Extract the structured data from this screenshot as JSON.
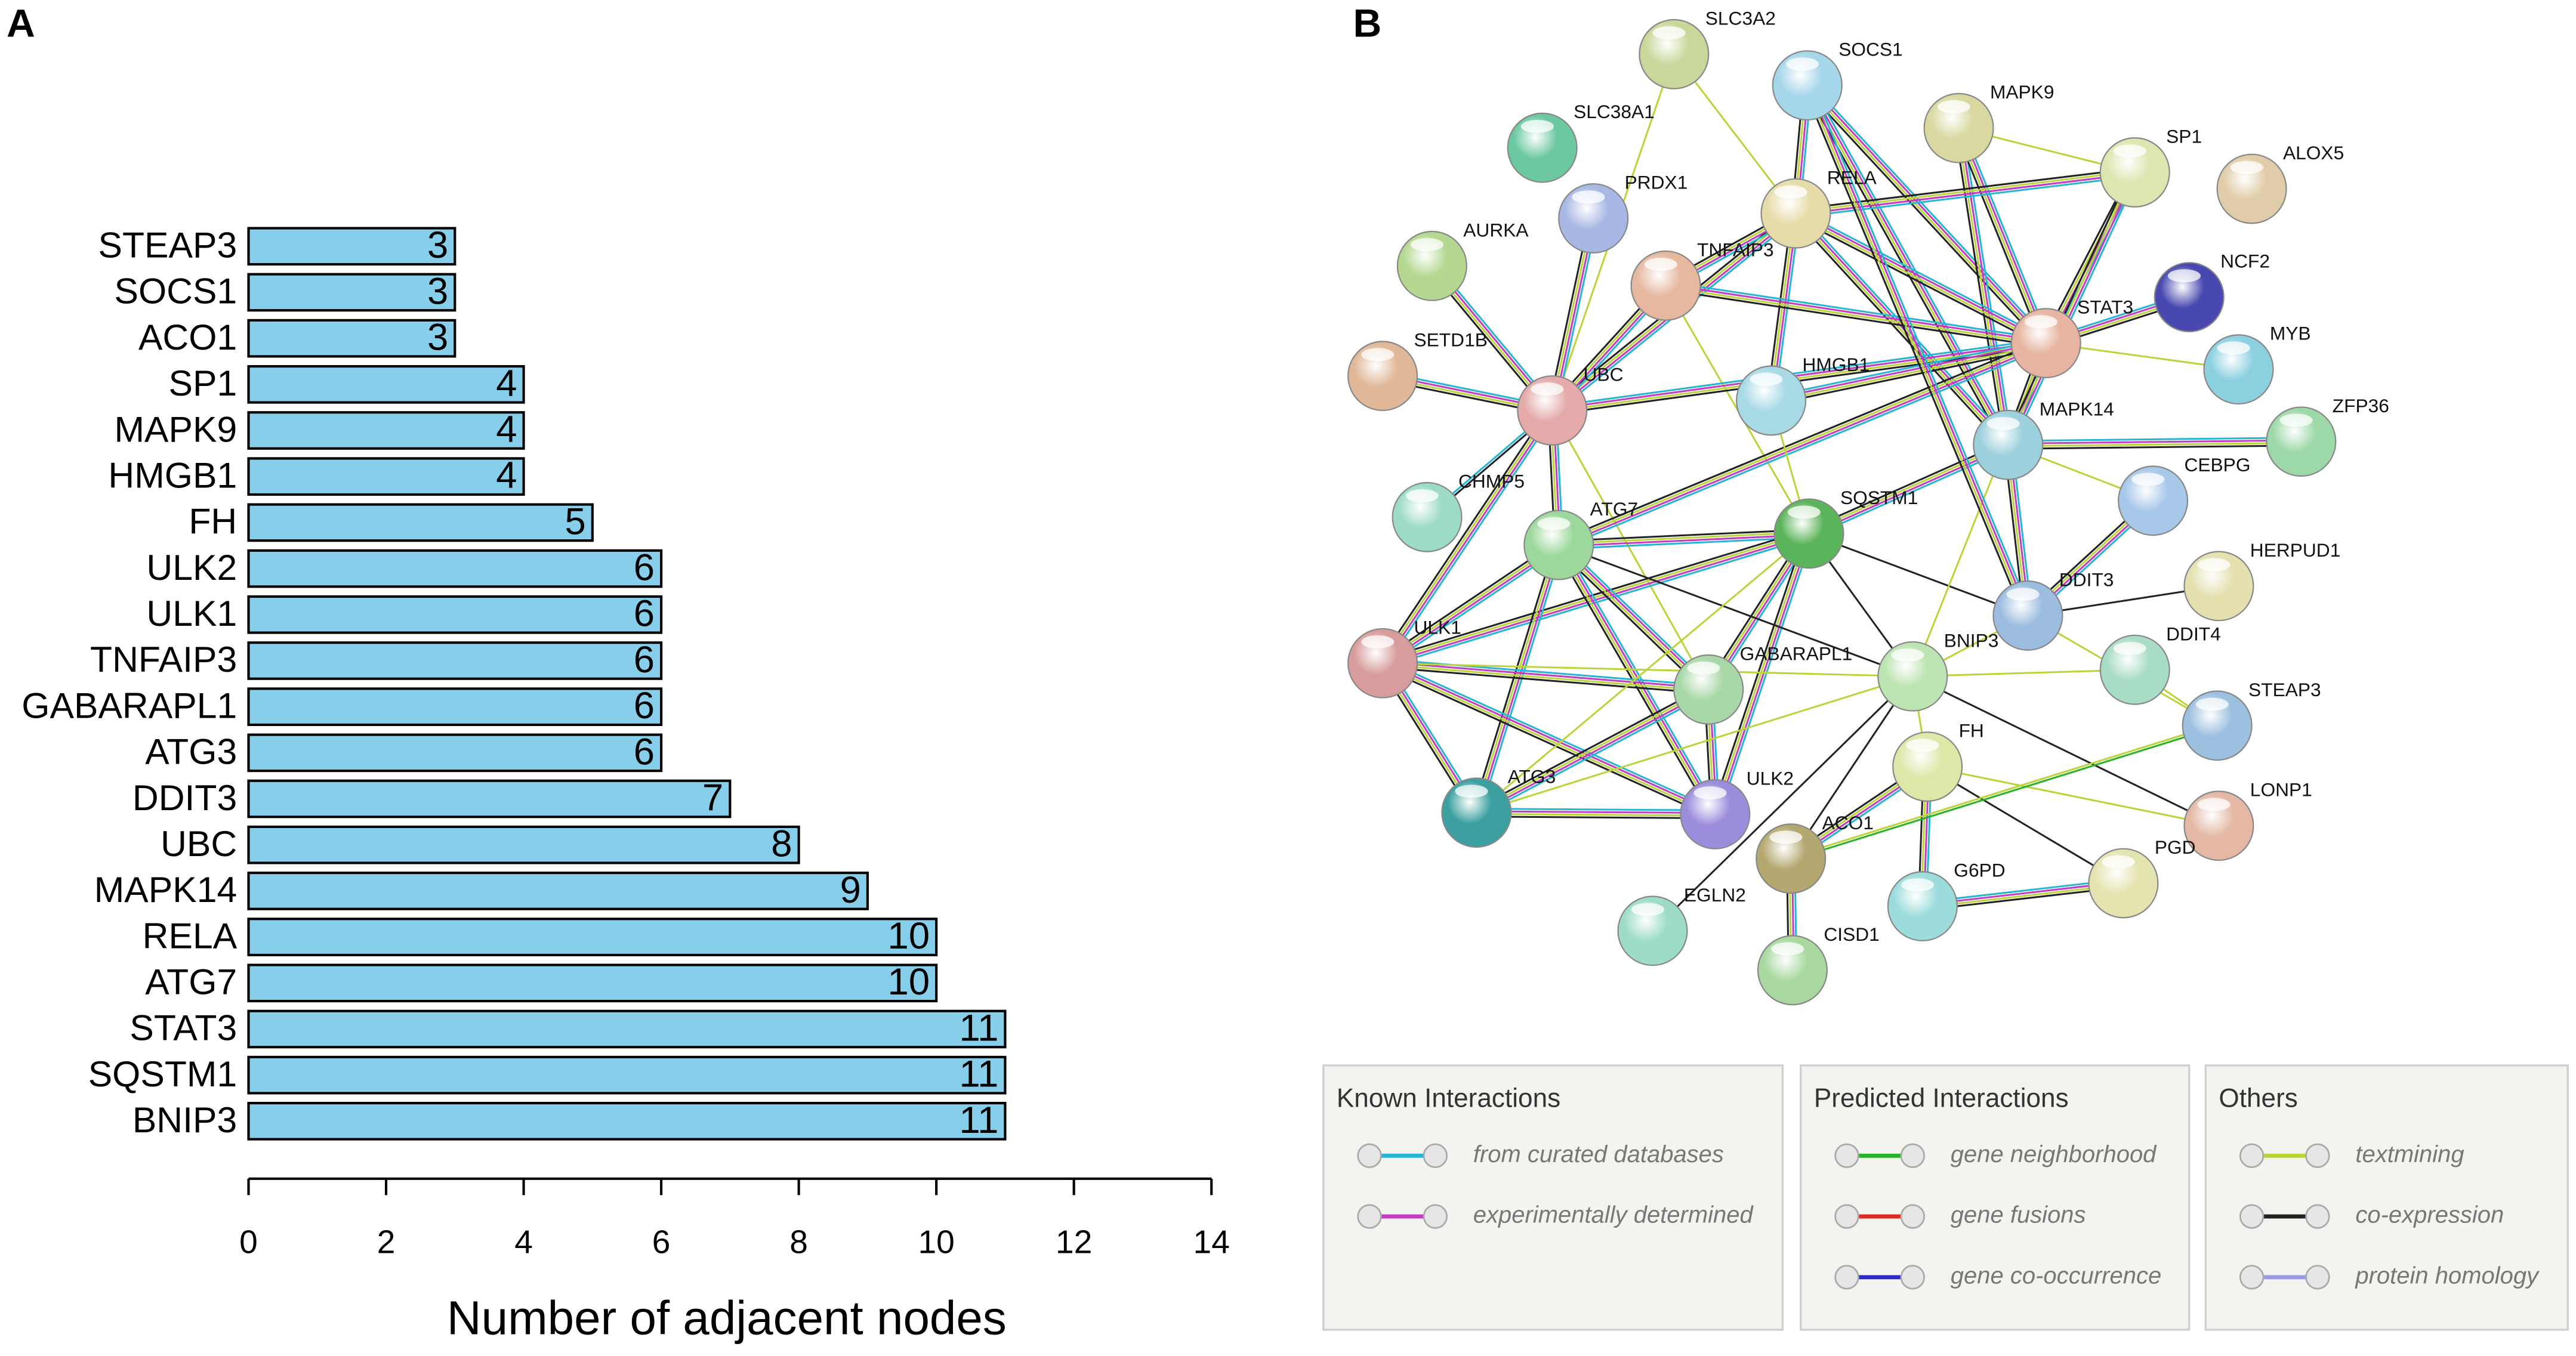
{
  "chart_data": {
    "type": "bar",
    "orientation": "horizontal",
    "panel_label": "A",
    "categories": [
      "STEAP3",
      "SOCS1",
      "ACO1",
      "SP1",
      "MAPK9",
      "HMGB1",
      "FH",
      "ULK2",
      "ULK1",
      "TNFAIP3",
      "GABARAPL1",
      "ATG3",
      "DDIT3",
      "UBC",
      "MAPK14",
      "RELA",
      "ATG7",
      "STAT3",
      "SQSTM1",
      "BNIP3"
    ],
    "values": [
      3,
      3,
      3,
      4,
      4,
      4,
      5,
      6,
      6,
      6,
      6,
      6,
      7,
      8,
      9,
      10,
      10,
      11,
      11,
      11
    ],
    "color": "#87ceeb",
    "xlabel": "Number of adjacent nodes",
    "xlim": [
      0,
      14
    ],
    "xticks": [
      0,
      2,
      4,
      6,
      8,
      10,
      12,
      14
    ],
    "grid": false
  },
  "network": {
    "panel_label": "B",
    "nodes": [
      "SLC3A2",
      "SOCS1",
      "SLC38A1",
      "MAPK9",
      "SP1",
      "ALOX5",
      "PRDX1",
      "RELA",
      "AURKA",
      "TNFAIP3",
      "NCF2",
      "STAT3",
      "MYB",
      "SETD1B",
      "HMGB1",
      "UBC",
      "MAPK14",
      "ZFP36",
      "CHMP5",
      "CEBPG",
      "SQSTM1",
      "ATG7",
      "HERPUD1",
      "DDIT3",
      "ULK1",
      "BNIP3",
      "DDIT4",
      "GABARAPL1",
      "STEAP3",
      "FH",
      "ATG3",
      "ULK2",
      "LONP1",
      "ACO1",
      "PGD",
      "G6PD",
      "EGLN2",
      "CISD1"
    ]
  },
  "legend": {
    "groups": [
      {
        "title": "Known Interactions",
        "items": [
          {
            "label": "from curated databases",
            "color": "#25b5d5"
          },
          {
            "label": "experimentally determined",
            "color": "#c43bc4"
          }
        ]
      },
      {
        "title": "Predicted Interactions",
        "items": [
          {
            "label": "gene neighborhood",
            "color": "#27b427"
          },
          {
            "label": "gene fusions",
            "color": "#e32a21"
          },
          {
            "label": "gene co-occurrence",
            "color": "#2929c9"
          }
        ]
      },
      {
        "title": "Others",
        "items": [
          {
            "label": "textmining",
            "color": "#bbd43a"
          },
          {
            "label": "co-expression",
            "color": "#222222"
          },
          {
            "label": "protein homology",
            "color": "#9a9ae8"
          }
        ]
      }
    ]
  }
}
